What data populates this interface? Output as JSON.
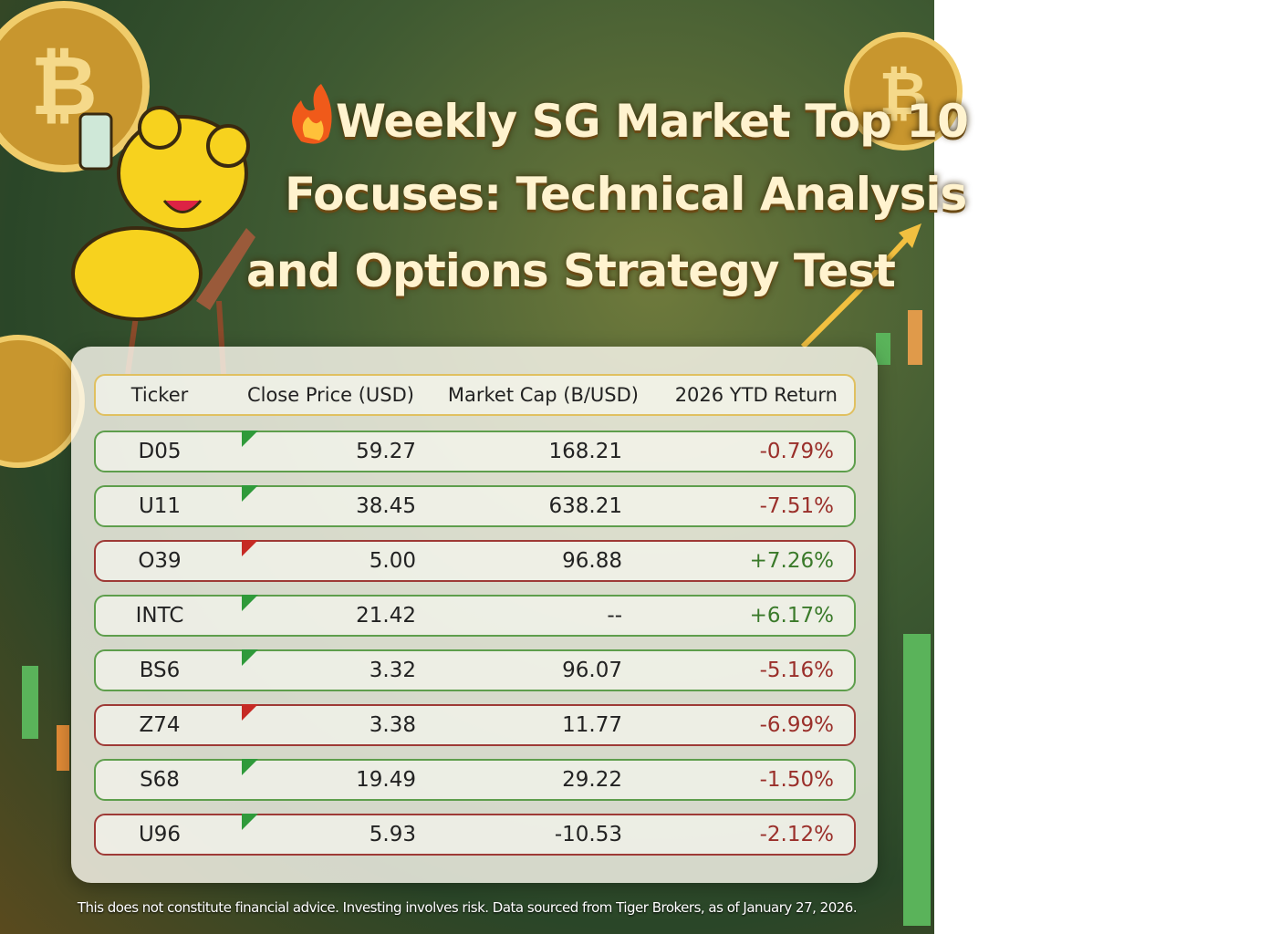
{
  "header": {
    "title_lines": [
      "Weekly SG Market Top 10",
      "Focuses: Technical Analysis",
      "and Options Strategy Test"
    ]
  },
  "table": {
    "columns": [
      "Ticker",
      "Close Price (USD)",
      "Market Cap (B/USD)",
      "2026 YTD Return"
    ],
    "rows": [
      {
        "cells": [
          "D05",
          "59.27",
          "168.21",
          "-0.79%"
        ],
        "border": "#5e9e4c",
        "flag": "#2f9a3a"
      },
      {
        "cells": [
          "U11",
          "38.45",
          "638.21",
          "-7.51%"
        ],
        "border": "#5e9e4c",
        "flag": "#2f9a3a"
      },
      {
        "cells": [
          "O39",
          "5.00",
          "96.88",
          "+7.26%"
        ],
        "border": "#9e3a36",
        "flag": "#c62a24"
      },
      {
        "cells": [
          "INTC",
          "21.42",
          "--",
          "+6.17%"
        ],
        "border": "#5e9e4c",
        "flag": "#2f9a3a"
      },
      {
        "cells": [
          "BS6",
          "3.32",
          "96.07",
          "-5.16%"
        ],
        "border": "#5e9e4c",
        "flag": "#2f9a3a"
      },
      {
        "cells": [
          "Z74",
          "3.38",
          "11.77",
          "-6.99%"
        ],
        "border": "#9e3a36",
        "flag": "#c62a24"
      },
      {
        "cells": [
          "S68",
          "19.49",
          "29.22",
          "-1.50%"
        ],
        "border": "#5e9e4c",
        "flag": "#2f9a3a"
      },
      {
        "cells": [
          "U96",
          "5.93",
          "-10.53",
          "-2.12%"
        ],
        "border": "#9e3a36",
        "flag": "#2f9a3a"
      }
    ]
  },
  "footer": {
    "disclaimer": "This does not constitute financial advice. Investing involves risk. Data sourced from Tiger Brokers, as of January 27, 2026."
  }
}
